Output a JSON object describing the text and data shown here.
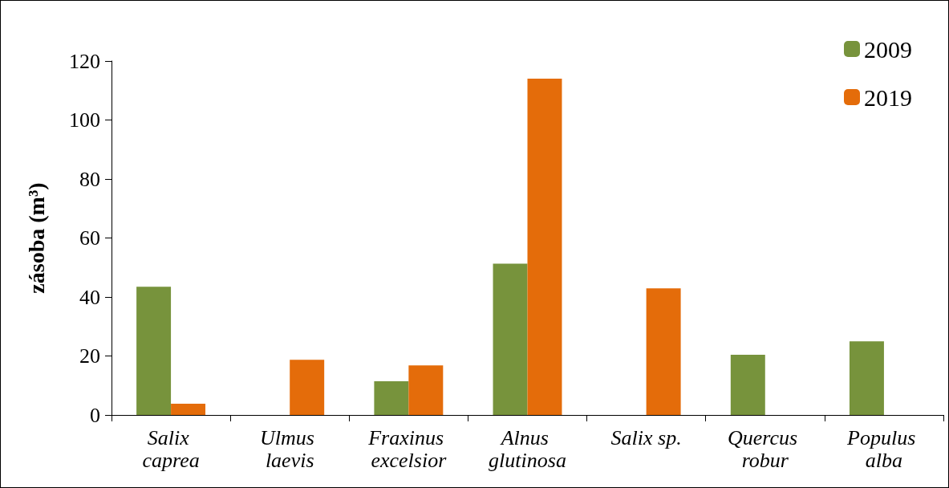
{
  "chart_data": {
    "type": "bar",
    "ylabel": "zásoba (m³)",
    "categories": [
      "Salix caprea",
      "Ulmus laevis",
      "Fraxinus excelsior",
      "Alnus glutinosa",
      "Salix sp.",
      "Quercus robur",
      "Populus alba"
    ],
    "series": [
      {
        "name": "2009",
        "color": "#77933c",
        "values": [
          43.5,
          null,
          11.4,
          51.3,
          null,
          20.4,
          25
        ]
      },
      {
        "name": "2019",
        "color": "#e46c0a",
        "values": [
          3.8,
          18.7,
          16.8,
          114,
          42.9,
          null,
          null
        ]
      }
    ],
    "ylim": [
      0,
      120
    ],
    "yticks": [
      0,
      20,
      40,
      60,
      80,
      100,
      120
    ],
    "grid": false,
    "legend": "top right"
  }
}
